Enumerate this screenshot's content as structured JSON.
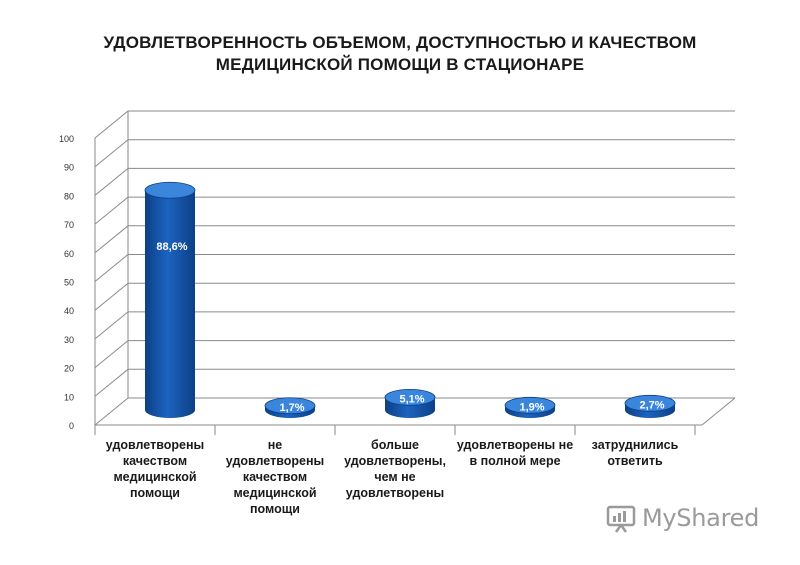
{
  "chart_data": {
    "type": "bar",
    "title_lines": [
      "УДОВЛЕТВОРЕННОСТЬ ОБЪЕМОМ, ДОСТУПНОСТЬЮ И КАЧЕСТВОМ",
      "МЕДИЦИНСКОЙ ПОМОЩИ В СТАЦИОНАРЕ"
    ],
    "categories": [
      [
        "удовлетворены",
        "качеством",
        "медицинской",
        "помощи"
      ],
      [
        "не",
        "удовлетворены",
        "качеством",
        "медицинской",
        "помощи"
      ],
      [
        "больше",
        "удовлетворены,",
        "чем не",
        "удовлетворены"
      ],
      [
        "удовлетворены не",
        "в полной мере"
      ],
      [
        "затруднились",
        "ответить"
      ]
    ],
    "values": [
      88.6,
      1.7,
      5.1,
      1.9,
      2.7
    ],
    "data_labels": [
      "88,6%",
      "1,7%",
      "5,1%",
      "1,9%",
      "2,7%"
    ],
    "ylim": [
      0,
      100
    ],
    "yticks": [
      "0",
      "10",
      "20",
      "30",
      "40",
      "50",
      "60",
      "70",
      "80",
      "90",
      "100"
    ],
    "grid": true,
    "colors": {
      "bar": "#1c64c0",
      "bar_dark": "#0d3f86",
      "bar_top": "#3a86dd",
      "grid": "#8a8a8a"
    }
  },
  "watermark": {
    "text": "MyShared"
  }
}
